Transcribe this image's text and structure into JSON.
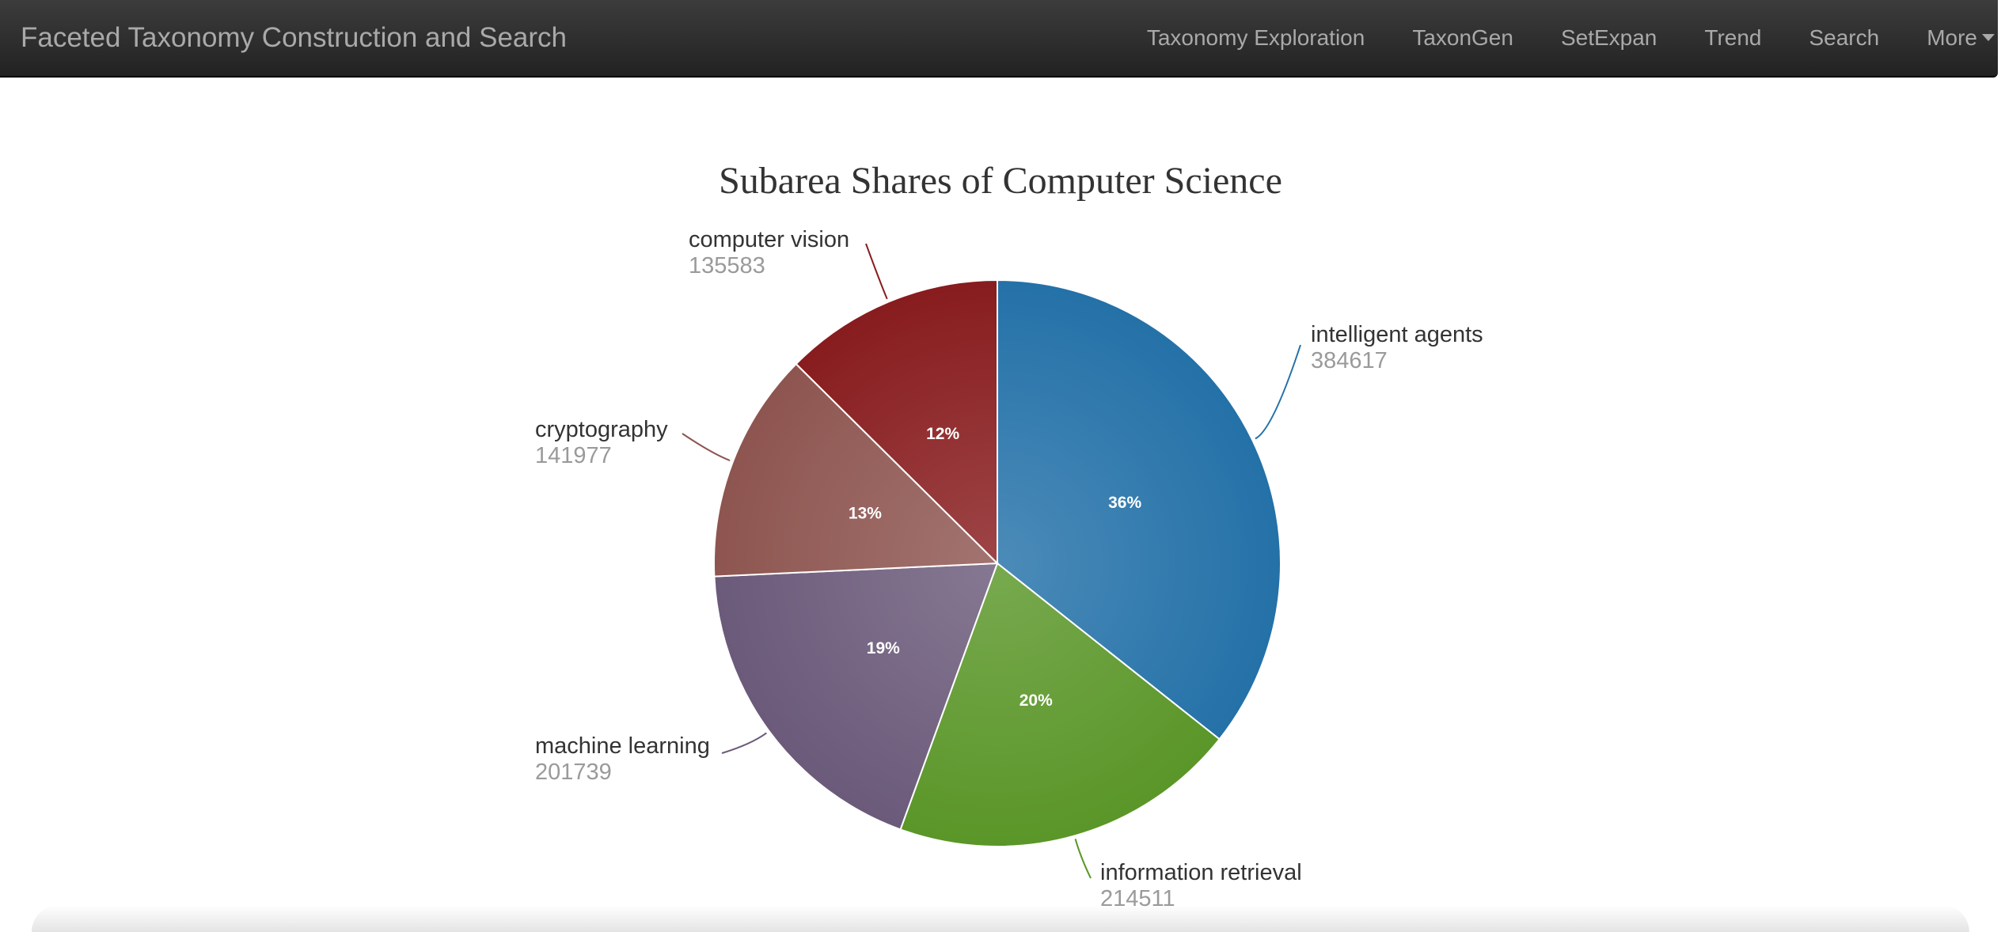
{
  "navbar": {
    "brand": "Faceted Taxonomy Construction and Search",
    "links": [
      {
        "label": "Taxonomy Exploration"
      },
      {
        "label": "TaxonGen"
      },
      {
        "label": "SetExpan"
      },
      {
        "label": "Trend"
      },
      {
        "label": "Search"
      },
      {
        "label": "More"
      }
    ],
    "more_icon": "caret-down-icon"
  },
  "colors": {
    "navbar_bg": "#2b2b2b",
    "nav_text": "#a9a9a9"
  },
  "chart_data": {
    "type": "pie",
    "title": "Subarea Shares of Computer Science",
    "slices": [
      {
        "label": "intelligent agents",
        "value": 384617,
        "percent_label": "36%",
        "color": "#2471a8"
      },
      {
        "label": "information retrieval",
        "value": 214511,
        "percent_label": "20%",
        "color": "#5a9628"
      },
      {
        "label": "machine learning",
        "value": 201739,
        "percent_label": "19%",
        "color": "#6b5a7a"
      },
      {
        "label": "cryptography",
        "value": 141977,
        "percent_label": "13%",
        "color": "#8e5550"
      },
      {
        "label": "computer vision",
        "value": 135583,
        "percent_label": "12%",
        "color": "#881c1e"
      }
    ]
  }
}
